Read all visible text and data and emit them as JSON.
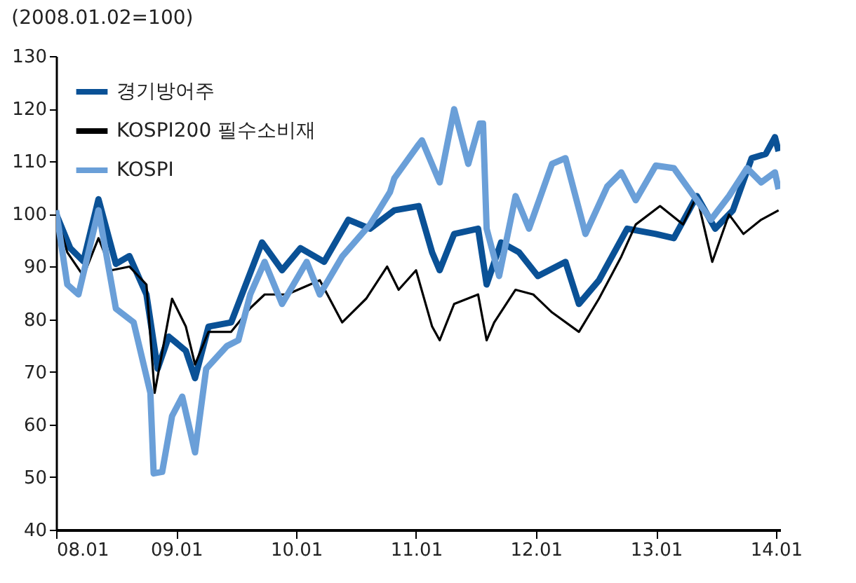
{
  "chart_data": {
    "type": "line",
    "ylabel": "(2008.01.02=100)",
    "xlim": [
      "2008-01-02",
      "2014-01-15"
    ],
    "xticks": [
      {
        "value": "2008-01-02",
        "label": "08.01"
      },
      {
        "value": "2009-01-02",
        "label": "09.01"
      },
      {
        "value": "2010-01-02",
        "label": "10.01"
      },
      {
        "value": "2011-01-02",
        "label": "11.01"
      },
      {
        "value": "2012-01-02",
        "label": "12.01"
      },
      {
        "value": "2013-01-02",
        "label": "13.01"
      },
      {
        "value": "2014-01-02",
        "label": "14.01"
      }
    ],
    "ylim": [
      40,
      130
    ],
    "yticks": [
      40,
      50,
      60,
      70,
      80,
      90,
      100,
      110,
      120,
      130
    ],
    "grid": false,
    "legend": "top left",
    "line_style": "solid",
    "marker": "none",
    "series": [
      {
        "name": "경기방어주",
        "color": "#0a5196",
        "x": [
          "2008-01-02",
          "2008-02-14",
          "2008-03-25",
          "2008-05-10",
          "2008-07-02",
          "2008-08-12",
          "2008-10-03",
          "2008-11-06",
          "2008-12-10",
          "2009-01-31",
          "2009-02-28",
          "2009-04-10",
          "2009-06-18",
          "2009-09-20",
          "2009-11-20",
          "2010-01-15",
          "2010-03-28",
          "2010-06-10",
          "2010-08-15",
          "2010-10-28",
          "2011-01-10",
          "2011-02-20",
          "2011-03-15",
          "2011-04-28",
          "2011-07-10",
          "2011-08-05",
          "2011-09-18",
          "2011-11-12",
          "2012-01-08",
          "2012-04-01",
          "2012-05-12",
          "2012-07-12",
          "2012-10-06",
          "2013-01-01",
          "2013-02-25",
          "2013-05-06",
          "2013-07-01",
          "2013-08-24",
          "2013-10-20",
          "2013-12-02",
          "2013-12-30",
          "2014-01-10"
        ],
        "values": [
          100,
          93.5,
          91,
          102.8,
          90.5,
          92,
          84.7,
          70.6,
          76.7,
          74,
          68.8,
          78.6,
          79.4,
          94.6,
          89.3,
          93.5,
          90.9,
          98.9,
          97.2,
          100.7,
          101.5,
          92.7,
          89.3,
          96.2,
          97.2,
          86.6,
          94.6,
          92.7,
          88.2,
          90.9,
          82.9,
          87.4,
          97.2,
          96.2,
          95.4,
          103.4,
          97.2,
          100.7,
          110.6,
          111.4,
          114.6,
          111.9
        ]
      },
      {
        "name": "KOSPI200 필수소비재",
        "color": "#000000",
        "x": [
          "2008-01-02",
          "2008-02-05",
          "2008-03-25",
          "2008-05-10",
          "2008-06-18",
          "2008-08-12",
          "2008-10-03",
          "2008-10-28",
          "2008-12-20",
          "2009-01-31",
          "2009-02-28",
          "2009-04-10",
          "2009-06-18",
          "2009-08-15",
          "2009-09-28",
          "2009-12-05",
          "2010-03-15",
          "2010-05-22",
          "2010-08-03",
          "2010-10-06",
          "2010-11-10",
          "2011-01-02",
          "2011-02-20",
          "2011-03-15",
          "2011-04-28",
          "2011-07-10",
          "2011-08-05",
          "2011-08-28",
          "2011-11-01",
          "2011-12-25",
          "2012-02-20",
          "2012-05-12",
          "2012-07-12",
          "2012-09-18",
          "2012-11-01",
          "2013-01-14",
          "2013-03-25",
          "2013-05-06",
          "2013-06-22",
          "2013-08-12",
          "2013-09-25",
          "2013-11-18",
          "2014-01-10"
        ],
        "values": [
          100,
          92.7,
          88.2,
          95.4,
          89.3,
          90,
          86.6,
          66,
          83.9,
          78.6,
          71.4,
          77.6,
          77.6,
          82.1,
          84.7,
          84.7,
          87.4,
          79.4,
          83.9,
          90,
          85.6,
          89.3,
          78.6,
          76,
          82.9,
          84.7,
          76,
          79.4,
          85.6,
          84.7,
          81.3,
          77.6,
          83.9,
          91.9,
          98,
          101.5,
          98,
          103.4,
          90.9,
          99.9,
          96.2,
          98.9,
          100.7
        ]
      },
      {
        "name": "KOSPI",
        "color": "#6a9fd8",
        "x": [
          "2008-01-02",
          "2008-02-05",
          "2008-03-10",
          "2008-05-10",
          "2008-07-02",
          "2008-08-25",
          "2008-10-15",
          "2008-10-25",
          "2008-11-20",
          "2008-12-20",
          "2009-01-20",
          "2009-02-28",
          "2009-04-03",
          "2009-06-05",
          "2009-07-10",
          "2009-08-15",
          "2009-09-28",
          "2009-11-20",
          "2010-02-03",
          "2010-03-15",
          "2010-05-22",
          "2010-08-15",
          "2010-10-15",
          "2010-10-28",
          "2011-01-10",
          "2011-01-20",
          "2011-03-15",
          "2011-04-28",
          "2011-06-10",
          "2011-07-15",
          "2011-07-25",
          "2011-08-05",
          "2011-09-12",
          "2011-11-01",
          "2011-12-12",
          "2012-02-20",
          "2012-04-01",
          "2012-06-01",
          "2012-08-06",
          "2012-09-18",
          "2012-11-01",
          "2013-01-01",
          "2013-02-25",
          "2013-04-18",
          "2013-06-18",
          "2013-08-12",
          "2013-10-06",
          "2013-11-18",
          "2013-12-30",
          "2014-01-10"
        ],
        "values": [
          100.7,
          86.6,
          84.7,
          100.7,
          82,
          79.4,
          66,
          50.7,
          51,
          61.6,
          65.3,
          54.7,
          70.6,
          74.9,
          76,
          84.7,
          90.9,
          82.9,
          90.9,
          84.7,
          91.9,
          98,
          104.2,
          106.8,
          113.2,
          114,
          106,
          119.9,
          109.5,
          117.2,
          117.2,
          97.2,
          88.2,
          103.4,
          97.2,
          109.5,
          110.6,
          96.2,
          105.2,
          107.9,
          102.6,
          109.2,
          108.7,
          104.2,
          98.9,
          103.4,
          108.7,
          106,
          107.9,
          104.7
        ]
      }
    ]
  }
}
